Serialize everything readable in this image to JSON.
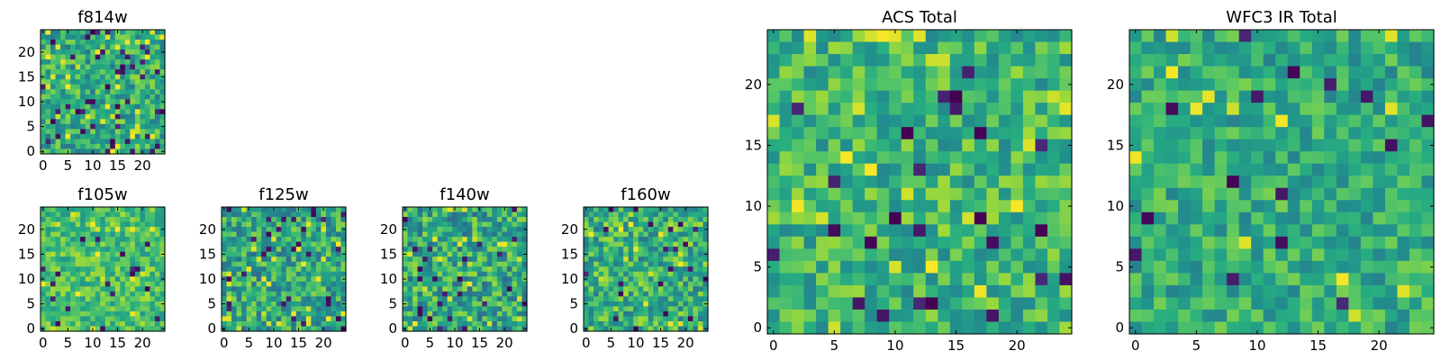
{
  "chart_data": [
    {
      "type": "heatmap",
      "title": "f814w",
      "xlim": [
        0,
        24
      ],
      "ylim": [
        0,
        24
      ],
      "xticks": [
        "0",
        "5",
        "10",
        "15",
        "20"
      ],
      "yticks": [
        "0",
        "5",
        "10",
        "15",
        "20"
      ],
      "colormap": "viridis",
      "seed": 11,
      "base": 0.62,
      "spread": 0.22,
      "outlier_rate": 0.12
    },
    {
      "type": "heatmap",
      "title": "f105w",
      "xlim": [
        0,
        24
      ],
      "ylim": [
        0,
        24
      ],
      "xticks": [
        "0",
        "5",
        "10",
        "15",
        "20"
      ],
      "yticks": [
        "0",
        "5",
        "10",
        "15",
        "20"
      ],
      "colormap": "viridis",
      "seed": 23,
      "base": 0.7,
      "spread": 0.18,
      "outlier_rate": 0.04
    },
    {
      "type": "heatmap",
      "title": "f125w",
      "xlim": [
        0,
        24
      ],
      "ylim": [
        0,
        24
      ],
      "xticks": [
        "0",
        "5",
        "10",
        "15",
        "20"
      ],
      "yticks": [
        "0",
        "5",
        "10",
        "15",
        "20"
      ],
      "colormap": "viridis",
      "seed": 37,
      "base": 0.6,
      "spread": 0.24,
      "outlier_rate": 0.08
    },
    {
      "type": "heatmap",
      "title": "f140w",
      "xlim": [
        0,
        24
      ],
      "ylim": [
        0,
        24
      ],
      "xticks": [
        "0",
        "5",
        "10",
        "15",
        "20"
      ],
      "yticks": [
        "0",
        "5",
        "10",
        "15",
        "20"
      ],
      "colormap": "viridis",
      "seed": 41,
      "base": 0.6,
      "spread": 0.25,
      "outlier_rate": 0.08
    },
    {
      "type": "heatmap",
      "title": "f160w",
      "xlim": [
        0,
        24
      ],
      "ylim": [
        0,
        24
      ],
      "xticks": [
        "0",
        "5",
        "10",
        "15",
        "20"
      ],
      "yticks": [
        "0",
        "5",
        "10",
        "15",
        "20"
      ],
      "colormap": "viridis",
      "seed": 53,
      "base": 0.64,
      "spread": 0.24,
      "outlier_rate": 0.07
    },
    {
      "type": "heatmap",
      "title": "ACS Total",
      "xlim": [
        0,
        24
      ],
      "ylim": [
        0,
        24
      ],
      "xticks": [
        "0",
        "5",
        "10",
        "15",
        "20"
      ],
      "yticks": [
        "0",
        "5",
        "10",
        "15",
        "20"
      ],
      "colormap": "viridis",
      "seed": 67,
      "base": 0.66,
      "spread": 0.2,
      "outlier_rate": 0.06
    },
    {
      "type": "heatmap",
      "title": "WFC3 IR Total",
      "xlim": [
        0,
        24
      ],
      "ylim": [
        0,
        24
      ],
      "xticks": [
        "0",
        "5",
        "10",
        "15",
        "20"
      ],
      "yticks": [
        "0",
        "5",
        "10",
        "15",
        "20"
      ],
      "colormap": "viridis",
      "seed": 79,
      "base": 0.62,
      "spread": 0.18,
      "outlier_rate": 0.05
    }
  ]
}
